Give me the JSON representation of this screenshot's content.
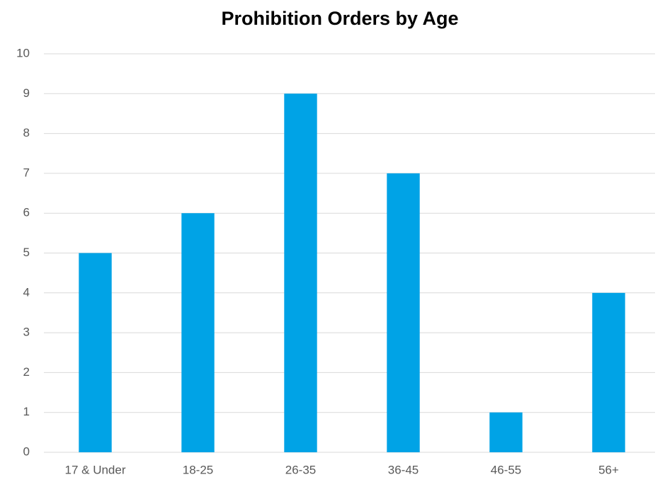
{
  "chart_data": {
    "type": "bar",
    "title": "Prohibition Orders by Age",
    "categories": [
      "17 & Under",
      "18-25",
      "26-35",
      "36-45",
      "46-55",
      "56+"
    ],
    "values": [
      5,
      6,
      9,
      7,
      1,
      4
    ],
    "color": "#00a3e6",
    "ylim": [
      0,
      10
    ],
    "yticks": [
      0,
      1,
      2,
      3,
      4,
      5,
      6,
      7,
      8,
      9,
      10
    ],
    "grid": true
  }
}
